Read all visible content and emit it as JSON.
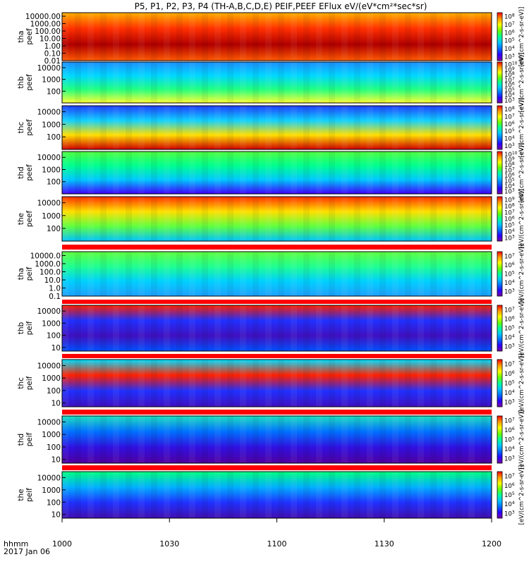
{
  "chart_data": {
    "type": "heatmap",
    "title": "P5, P1, P2, P3, P4 (TH-A,B,C,D,E) PEIF,PEEF EFlux eV/(eV*cm²*sec*sr)",
    "xlabel": "hhmm",
    "date_label": "2017 Jan 06",
    "x_ticks": [
      "1000",
      "1030",
      "1100",
      "1130",
      "1200"
    ],
    "x_range": [
      "10:00",
      "12:00"
    ],
    "colorbar_label": "[eV/(cm^2-s-sr-eV)]",
    "colormap": [
      "#7a00a8",
      "#2a00ff",
      "#0070ff",
      "#00c8ff",
      "#00ff9a",
      "#6dff00",
      "#ffff00",
      "#ff9a00",
      "#ff0000"
    ],
    "panels": [
      {
        "probe": "tha",
        "species": "peef",
        "y_ticks": [
          "10000.00",
          "1000.00",
          "100.00",
          "10.00",
          "1.00",
          "0.10",
          "0.01"
        ],
        "ylog_range": [
          0.01,
          30000
        ],
        "cbar_exponents": [
          3,
          4,
          5,
          6,
          7,
          8
        ],
        "dominant_colors": [
          "#ffb000",
          "#ff3000",
          "#b00000",
          "#ff5a00"
        ]
      },
      {
        "probe": "thb",
        "species": "peef",
        "y_ticks": [
          "10000",
          "1000",
          "100"
        ],
        "ylog_range": [
          10,
          30000
        ],
        "cbar_exponents": [
          3,
          4,
          5,
          6,
          7,
          8,
          9,
          10
        ],
        "dominant_colors": [
          "#1e90ff",
          "#00d8ff",
          "#20ff80",
          "#ffff30"
        ]
      },
      {
        "probe": "thc",
        "species": "peef",
        "y_ticks": [
          "10000",
          "1000",
          "100"
        ],
        "ylog_range": [
          10,
          30000
        ],
        "cbar_exponents": [
          3,
          4,
          5,
          6,
          7,
          8
        ],
        "dominant_colors": [
          "#2040ff",
          "#10d0ff",
          "#ffe000",
          "#d00000"
        ]
      },
      {
        "probe": "thd",
        "species": "peef",
        "y_ticks": [
          "10000",
          "1000",
          "100"
        ],
        "ylog_range": [
          10,
          30000
        ],
        "cbar_exponents": [
          3,
          4,
          5,
          6,
          7,
          8,
          9,
          10
        ],
        "dominant_colors": [
          "#50ff40",
          "#00ff90",
          "#00c8ff",
          "#4000ff"
        ]
      },
      {
        "probe": "the",
        "species": "peef",
        "y_ticks": [
          "10000",
          "1000",
          "100"
        ],
        "ylog_range": [
          10,
          30000
        ],
        "cbar_exponents": [
          3,
          4,
          5,
          6,
          7,
          8,
          9
        ],
        "dominant_colors": [
          "#ff3000",
          "#ffe000",
          "#60ff40",
          "#00c0ff"
        ]
      },
      {
        "probe": "tha",
        "species": "peif",
        "y_ticks": [
          "10000.0",
          "1000.0",
          "100.0",
          "10.0",
          "1.0",
          "0.1"
        ],
        "ylog_range": [
          0.1,
          30000
        ],
        "cbar_exponents": [
          3,
          4,
          5,
          6,
          7
        ],
        "dominant_colors": [
          "#60ff40",
          "#20ff90",
          "#00d0ff",
          "#20a0ff"
        ]
      },
      {
        "probe": "thb",
        "species": "peif",
        "y_ticks": [
          "10000",
          "1000",
          "100",
          "10"
        ],
        "ylog_range": [
          5,
          30000
        ],
        "cbar_exponents": [
          3,
          4,
          5,
          6,
          7
        ],
        "dominant_colors": [
          "#ff2000",
          "#2030ff",
          "#4010c0",
          "#0050ff"
        ]
      },
      {
        "probe": "thc",
        "species": "peif",
        "y_ticks": [
          "10000",
          "1000",
          "100",
          "10"
        ],
        "ylog_range": [
          5,
          30000
        ],
        "cbar_exponents": [
          3,
          4,
          5,
          6,
          7
        ],
        "dominant_colors": [
          "#00e0ff",
          "#ff2000",
          "#2030ff",
          "#4010c0"
        ]
      },
      {
        "probe": "thd",
        "species": "peif",
        "y_ticks": [
          "10000",
          "1000",
          "100",
          "10"
        ],
        "ylog_range": [
          5,
          30000
        ],
        "cbar_exponents": [
          3,
          4,
          5,
          6,
          7
        ],
        "dominant_colors": [
          "#20e0c0",
          "#0070ff",
          "#3010e0",
          "#5000a0"
        ]
      },
      {
        "probe": "the",
        "species": "peif",
        "y_ticks": [
          "10000",
          "1000",
          "100",
          "10"
        ],
        "ylog_range": [
          5,
          30000
        ],
        "cbar_exponents": [
          3,
          4,
          5,
          6,
          7
        ],
        "dominant_colors": [
          "#00ff80",
          "#00b0ff",
          "#2030ff",
          "#4010b0"
        ]
      }
    ]
  }
}
